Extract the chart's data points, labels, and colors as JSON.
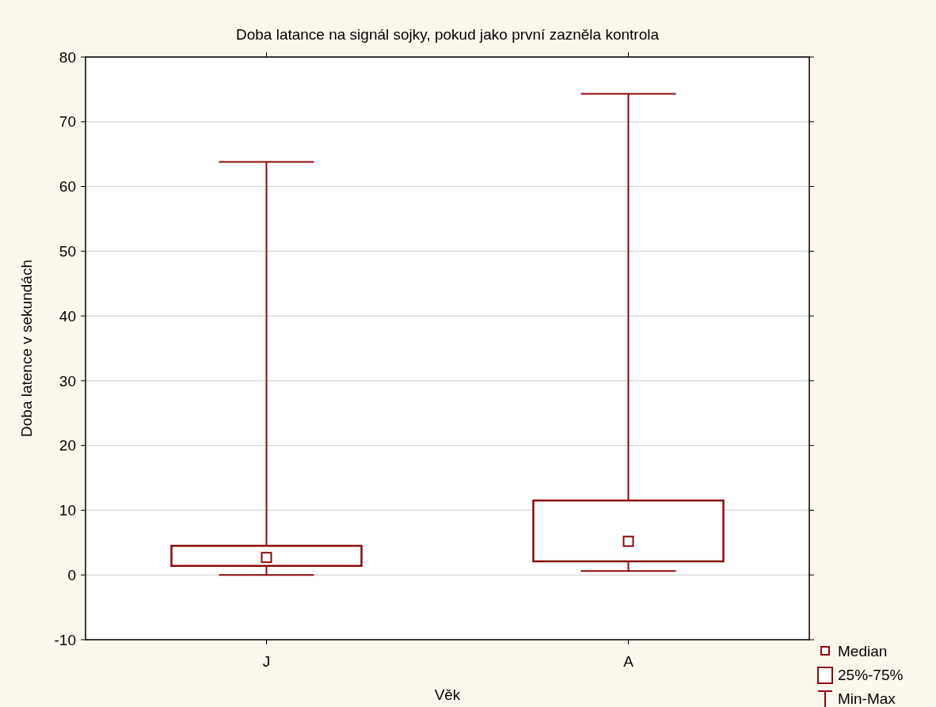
{
  "chart_data": {
    "type": "box",
    "title": "Doba latance na signál sojky, pokud jako první zazněla kontrola",
    "xlabel": "Věk",
    "ylabel": "Doba latence v sekundách",
    "categories": [
      "J",
      "A"
    ],
    "series": [
      {
        "color": "#8b0a0a",
        "boxes": [
          {
            "low": 0,
            "q1": 1.4,
            "median": 2.7,
            "q3": 4.5,
            "high": 63.8
          },
          {
            "low": 0.6,
            "q1": 2.1,
            "median": 5.2,
            "q3": 11.5,
            "high": 74.3
          }
        ]
      }
    ],
    "ylim": [
      -10,
      80
    ],
    "yticks": [
      -10,
      0,
      10,
      20,
      30,
      40,
      50,
      60,
      70,
      80
    ],
    "grid": "y",
    "marker": "square",
    "annotations": [
      "Median",
      "25%-75%",
      "Min-Max"
    ]
  }
}
